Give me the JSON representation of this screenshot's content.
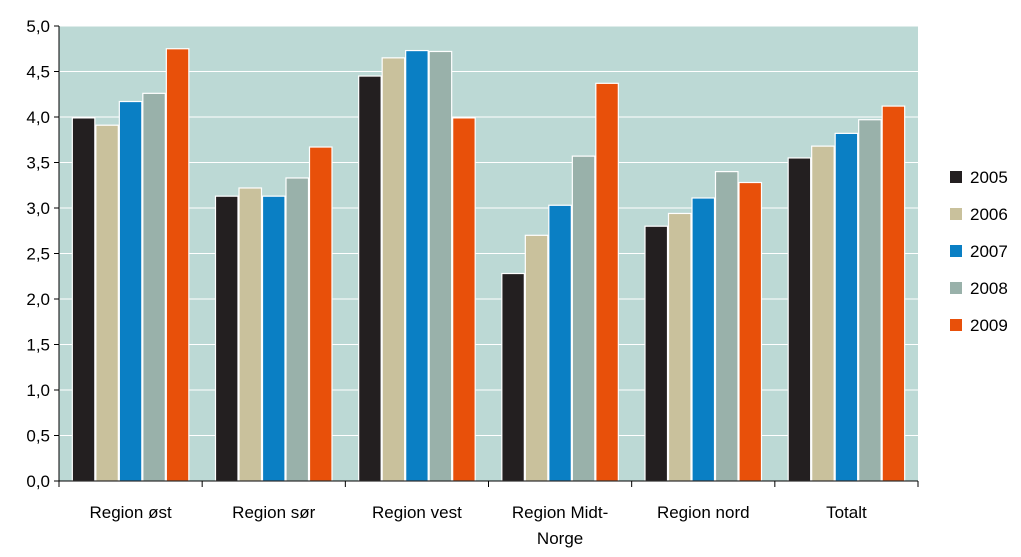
{
  "chart_data": {
    "type": "bar",
    "categories": [
      "Region øst",
      "Region sør",
      "Region vest",
      "Region Midt-Norge",
      "Region nord",
      "Totalt"
    ],
    "category_label_lines": [
      [
        "Region øst"
      ],
      [
        "Region sør"
      ],
      [
        "Region vest"
      ],
      [
        "Region Midt-",
        "Norge"
      ],
      [
        "Region nord"
      ],
      [
        "Totalt"
      ]
    ],
    "series": [
      {
        "name": "2005",
        "color": "#231f20",
        "values": [
          3.99,
          3.13,
          4.45,
          2.28,
          2.8,
          3.55
        ]
      },
      {
        "name": "2006",
        "color": "#c9c19c",
        "values": [
          3.91,
          3.22,
          4.65,
          2.7,
          2.94,
          3.68
        ]
      },
      {
        "name": "2007",
        "color": "#0a7fc4",
        "values": [
          4.17,
          3.13,
          4.73,
          3.03,
          3.11,
          3.82
        ]
      },
      {
        "name": "2008",
        "color": "#99b1aa",
        "values": [
          4.26,
          3.33,
          4.72,
          3.57,
          3.4,
          3.97
        ]
      },
      {
        "name": "2009",
        "color": "#e8500a",
        "values": [
          4.75,
          3.67,
          3.99,
          4.37,
          3.28,
          4.12
        ]
      }
    ],
    "y_ticks": [
      "0,0",
      "0,5",
      "1,0",
      "1,5",
      "2,0",
      "2,5",
      "3,0",
      "3,5",
      "4,0",
      "4,5",
      "5,0"
    ],
    "ylim": [
      0,
      5
    ],
    "title": "",
    "xlabel": "",
    "ylabel": "",
    "grid": true,
    "legend_position": "right",
    "plot_background": "#bcd9d5",
    "grid_color": "#ffffff"
  }
}
